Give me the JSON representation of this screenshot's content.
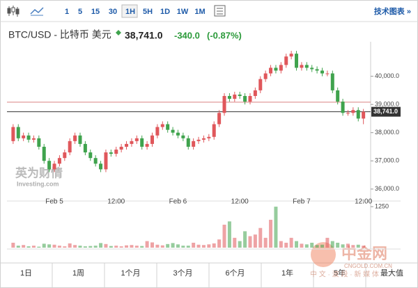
{
  "toolbar": {
    "intervals": [
      "1",
      "5",
      "15",
      "30",
      "1H",
      "5H",
      "1D",
      "1W",
      "1M"
    ],
    "selected": "1H",
    "link": "技术图表 »"
  },
  "header": {
    "name": "BTC/USD - 比特币 美元",
    "price": "38,741.0",
    "change": "-340.0",
    "change_pct": "(-0.87%)"
  },
  "watermarks": {
    "investing_cn": "英为财情",
    "investing": "Investing.com",
    "cngold_cn": "中金网",
    "cngold": "CNGOLD.COM.CN",
    "cngold_sub": "中 文 · 波 段 · 新 媒 体"
  },
  "periods": [
    "1日",
    "1周",
    "1个月",
    "3个月",
    "6个月",
    "1年",
    "5年",
    "最大值"
  ],
  "chart_data": {
    "type": "candlestick",
    "up_color": "#e0575b",
    "down_color": "#3fa34d",
    "x": [
      -8,
      -7,
      -6,
      -5,
      -4,
      -3,
      -2,
      -1,
      0,
      1,
      2,
      3,
      4,
      5,
      6,
      7,
      8,
      9,
      10,
      11,
      12,
      13,
      14,
      15,
      16,
      17,
      18,
      19,
      20,
      21,
      22,
      23,
      24,
      25,
      26,
      27,
      28,
      29,
      30,
      31,
      32,
      33,
      34,
      35,
      36,
      37,
      38,
      39,
      40,
      41,
      42,
      43,
      44,
      45,
      46,
      47,
      48,
      49,
      50,
      51,
      52,
      53,
      54,
      55,
      56,
      57,
      58,
      59,
      60
    ],
    "open": [
      37700,
      38200,
      37800,
      37900,
      37750,
      37800,
      37500,
      37000,
      36700,
      36900,
      37100,
      37300,
      37700,
      37900,
      37600,
      37300,
      37100,
      36900,
      36700,
      37300,
      37250,
      37400,
      37500,
      37600,
      37700,
      37800,
      37500,
      37600,
      37900,
      38200,
      38300,
      38100,
      38000,
      37900,
      37800,
      37500,
      37700,
      37750,
      37800,
      37850,
      38300,
      38700,
      39300,
      39200,
      39350,
      39300,
      39100,
      39300,
      39500,
      39900,
      40100,
      40300,
      40200,
      40400,
      40700,
      40800,
      40300,
      40400,
      40300,
      40250,
      40200,
      40100,
      40100,
      39500,
      39100,
      38700,
      38700,
      38800,
      38500
    ],
    "high": [
      38300,
      38300,
      38000,
      38000,
      37900,
      37900,
      37600,
      37100,
      37000,
      37200,
      37400,
      37800,
      38000,
      38000,
      37700,
      37400,
      37200,
      37000,
      37400,
      37400,
      37500,
      37600,
      37700,
      37800,
      37900,
      37900,
      37700,
      38000,
      38300,
      38400,
      38400,
      38200,
      38100,
      38000,
      37900,
      37800,
      37850,
      37900,
      37950,
      38400,
      38800,
      39400,
      39400,
      39450,
      39450,
      39400,
      39400,
      39600,
      40000,
      40200,
      40400,
      40400,
      40500,
      40800,
      40900,
      40900,
      40500,
      40500,
      40400,
      40350,
      40300,
      40200,
      40200,
      39600,
      39200,
      38800,
      38900,
      38900,
      38841
    ],
    "low": [
      37600,
      37700,
      37700,
      37650,
      37650,
      37400,
      36900,
      36600,
      36600,
      36800,
      37000,
      37200,
      37600,
      37500,
      37200,
      37000,
      36800,
      36600,
      36600,
      37150,
      37150,
      37300,
      37400,
      37500,
      37600,
      37400,
      37400,
      37500,
      37800,
      38100,
      38000,
      37900,
      37800,
      37700,
      37400,
      37400,
      37600,
      37650,
      37700,
      37750,
      38200,
      38600,
      39100,
      39100,
      39200,
      39000,
      39000,
      39200,
      39400,
      39800,
      40000,
      40100,
      40100,
      40300,
      40600,
      40200,
      40200,
      40200,
      40150,
      40100,
      40000,
      40000,
      39400,
      39000,
      38600,
      38600,
      38600,
      38400,
      38300
    ],
    "close": [
      38200,
      37800,
      37900,
      37750,
      37800,
      37500,
      37000,
      36700,
      36900,
      37100,
      37300,
      37700,
      37900,
      37600,
      37300,
      37100,
      36900,
      36700,
      37300,
      37250,
      37400,
      37500,
      37600,
      37700,
      37800,
      37500,
      37600,
      37900,
      38200,
      38300,
      38100,
      38000,
      37900,
      37800,
      37500,
      37700,
      37750,
      37800,
      37850,
      38300,
      38700,
      39300,
      39200,
      39350,
      39300,
      39100,
      39300,
      39500,
      39900,
      40100,
      40300,
      40200,
      40400,
      40700,
      40800,
      40300,
      40400,
      40300,
      40250,
      40200,
      40100,
      40100,
      39500,
      39100,
      38700,
      38700,
      38800,
      38500,
      38741
    ],
    "volume": [
      150,
      60,
      80,
      40,
      60,
      30,
      120,
      100,
      90,
      60,
      40,
      130,
      80,
      60,
      40,
      50,
      60,
      140,
      110,
      50,
      60,
      40,
      70,
      80,
      60,
      50,
      200,
      160,
      90,
      70,
      110,
      140,
      100,
      60,
      60,
      150,
      90,
      80,
      100,
      130,
      250,
      700,
      800,
      300,
      200,
      500,
      350,
      400,
      600,
      300,
      850,
      1250,
      200,
      150,
      300,
      200,
      120,
      100,
      150,
      80,
      90,
      300,
      200,
      150,
      100,
      120,
      80,
      90,
      60
    ],
    "xlim": [
      -9.2,
      61.4
    ],
    "xticks": [
      {
        "value": 0,
        "label": "Feb 5"
      },
      {
        "value": 12,
        "label": "12:00"
      },
      {
        "value": 24,
        "label": "Feb 6"
      },
      {
        "value": 36,
        "label": "12:00"
      },
      {
        "value": 48,
        "label": "Feb 7"
      },
      {
        "value": 60,
        "label": "12:00"
      }
    ],
    "ylim": [
      35600,
      41100
    ],
    "yticks": [
      {
        "value": 36000,
        "label": "36,000.0"
      },
      {
        "value": 37000,
        "label": "37,000.0"
      },
      {
        "value": 38000,
        "label": "38,000.0"
      },
      {
        "value": 39000,
        "label": "39,000.0"
      },
      {
        "value": 40000,
        "label": "40,000.0"
      }
    ],
    "volume_ylim": [
      0,
      1400
    ],
    "volume_yticks": [
      1250
    ],
    "prev_close": 39081,
    "last_price": {
      "value": 38741,
      "label": "38,741.0"
    }
  }
}
